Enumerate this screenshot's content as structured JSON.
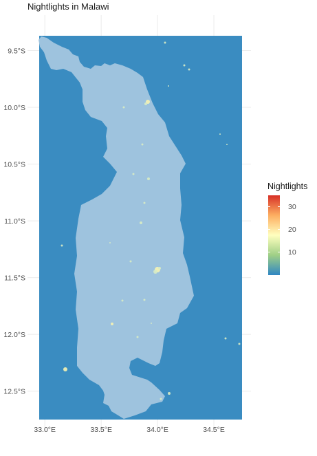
{
  "title": "Nightlights in Malawi",
  "colors": {
    "water": "#3a8cc1",
    "land": "#9ec3de",
    "grid": "#ebebeb",
    "text": "#4d4d4d",
    "light_low": "#d8ecc4",
    "light_high": "#f6f3b2"
  },
  "chart_data": {
    "type": "heatmap",
    "title": "Nightlights in Malawi",
    "xlabel": "",
    "ylabel": "",
    "x_ticks": [
      "33.0°E",
      "33.5°E",
      "34.0°E",
      "34.5°E"
    ],
    "x_tick_values": [
      33.0,
      33.5,
      34.0,
      34.5
    ],
    "y_ticks": [
      "9.5°S",
      "10.0°S",
      "10.5°S",
      "11.0°S",
      "11.5°S",
      "12.0°S",
      "12.5°S"
    ],
    "y_tick_values": [
      -9.5,
      -10.0,
      -10.5,
      -11.0,
      -11.5,
      -12.0,
      -12.5
    ],
    "xlim": [
      32.95,
      34.75
    ],
    "ylim": [
      -12.75,
      -9.37
    ],
    "grid": true,
    "legend": {
      "title": "Nightlights",
      "placement": "right",
      "ticks": [
        "10",
        "20",
        "30"
      ],
      "tick_values": [
        10,
        20,
        30
      ],
      "range": [
        0,
        35
      ],
      "palette": "RdYlBu-reversed",
      "stops": [
        "#2f86c3",
        "#9fcf86",
        "#ffffbf",
        "#fdae61",
        "#d73027"
      ]
    }
  }
}
